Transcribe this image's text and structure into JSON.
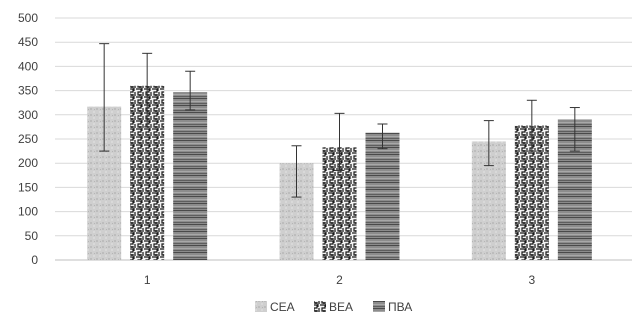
{
  "chart_data": {
    "type": "bar",
    "categories": [
      "1",
      "2",
      "3"
    ],
    "series": [
      {
        "name": "СЕА",
        "values": [
          317,
          200,
          245
        ],
        "error_low": [
          225,
          130,
          195
        ],
        "error_high": [
          447,
          236,
          288
        ],
        "color": "#c9c9c9",
        "pattern": "light-texture"
      },
      {
        "name": "ВЕА",
        "values": [
          360,
          233,
          278
        ],
        "error_low": [
          275,
          185,
          225
        ],
        "error_high": [
          427,
          303,
          330
        ],
        "color": "#7a7a7a",
        "pattern": "maze"
      },
      {
        "name": "ПВА",
        "values": [
          347,
          263,
          290
        ],
        "error_low": [
          310,
          230,
          225
        ],
        "error_high": [
          390,
          281,
          315
        ],
        "color": "#8a8a8a",
        "pattern": "horizontal-wood"
      }
    ],
    "ylim": [
      0,
      500
    ],
    "yticks": [
      "0",
      "50",
      "100",
      "150",
      "200",
      "250",
      "300",
      "350",
      "400",
      "450",
      "500"
    ],
    "grid": true,
    "legend_position": "bottom",
    "title": "",
    "xlabel": "",
    "ylabel": ""
  }
}
